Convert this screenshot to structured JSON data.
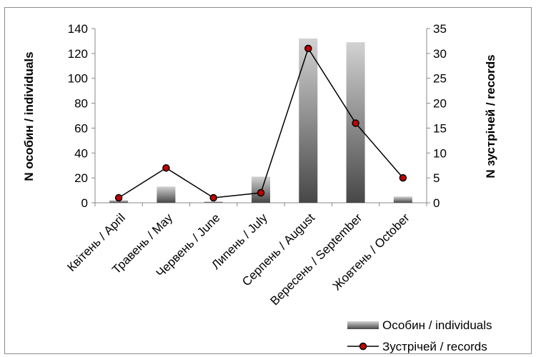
{
  "chart_data": {
    "type": "bar",
    "categories": [
      "Квітень / April",
      "Травень / May",
      "Червень / June",
      "Липень / July",
      "Серпень / August",
      "Вересень / September",
      "Жовтень / October"
    ],
    "series": [
      {
        "name": "Особин / individuals",
        "type": "bar",
        "axis": "left",
        "values": [
          2,
          13,
          1,
          21,
          132,
          129,
          5
        ]
      },
      {
        "name": "Зустрічей / records",
        "type": "line",
        "axis": "right",
        "values": [
          1,
          7,
          1,
          2,
          31,
          16,
          5
        ]
      }
    ],
    "ylabel": "N особин / individuals",
    "y2label": "N зустрічей / records",
    "ylim": [
      0,
      140
    ],
    "y2lim": [
      0,
      35
    ],
    "yticks": [
      0,
      20,
      40,
      60,
      80,
      100,
      120,
      140
    ],
    "y2ticks": [
      0,
      5,
      10,
      15,
      20,
      25,
      30,
      35
    ],
    "legend_position": "bottom-right",
    "grid": false,
    "colors": {
      "bar_top": "#d2d2d2",
      "bar_bottom": "#474747",
      "line": "#000000",
      "marker_fill": "#c00000"
    }
  }
}
